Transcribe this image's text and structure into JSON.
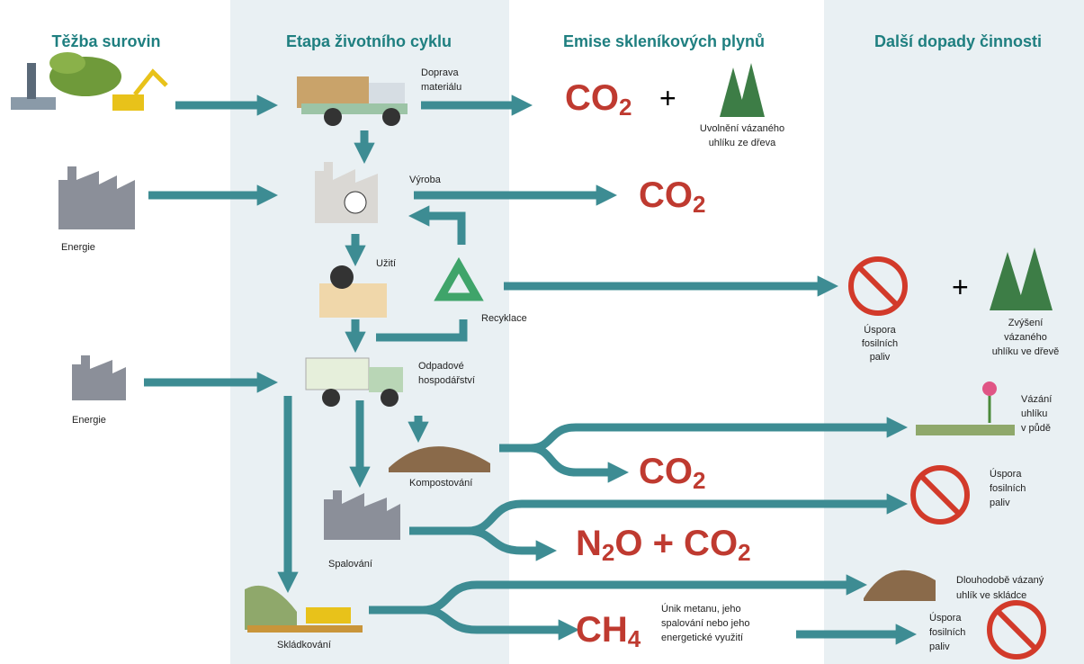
{
  "headers": [
    "Těžba surovin",
    "Etapa životního cyklu",
    "Emise skleníkových plynů",
    "Další dopady činnosti"
  ],
  "stages": {
    "transport": [
      "Doprava",
      "materiálu"
    ],
    "production": [
      "Výroba"
    ],
    "use": [
      "Užití"
    ],
    "recycling": [
      "Recyklace"
    ],
    "waste": [
      "Odpadové",
      "hospodářství"
    ],
    "composting": [
      "Kompostování"
    ],
    "incineration": [
      "Spalování"
    ],
    "landfill": [
      "Skládkování"
    ]
  },
  "inputs": [
    "Energie",
    "Energie"
  ],
  "emissions": [
    {
      "segments": [
        {
          "text": "CO"
        },
        {
          "sub": "2"
        }
      ],
      "plus": "+",
      "note": [
        "Uvolnění  vázaného",
        "uhlíku ze dřeva"
      ]
    },
    {
      "segments": [
        {
          "text": "CO"
        },
        {
          "sub": "2"
        }
      ]
    },
    {
      "segments": [
        {
          "text": "CO"
        },
        {
          "sub": "2"
        }
      ]
    },
    {
      "segments": [
        {
          "text": "N"
        },
        {
          "sub": "2"
        },
        {
          "text": "O + CO"
        },
        {
          "sub": "2"
        }
      ]
    },
    {
      "segments": [
        {
          "text": "CH"
        },
        {
          "sub": "4"
        }
      ],
      "note": [
        "Únik metanu, jeho",
        "spalování nebo jeho",
        "energetické využití"
      ]
    }
  ],
  "impacts": [
    {
      "lines": [
        "Úspora",
        "fosilních",
        "paliv"
      ]
    },
    {
      "plus": "+",
      "lines": [
        "Zvýšení",
        "vázaného",
        "uhlíku ve dřevě"
      ]
    },
    {
      "lines": [
        "Vázání",
        "uhlíku",
        "v půdě"
      ]
    },
    {
      "lines": [
        "Úspora",
        "fosilních",
        "paliv"
      ]
    },
    {
      "lines": [
        "Dlouhodobě vázaný",
        "uhlík ve skládce"
      ]
    },
    {
      "lines": [
        "Úspora",
        "fosilních",
        "paliv"
      ]
    }
  ]
}
